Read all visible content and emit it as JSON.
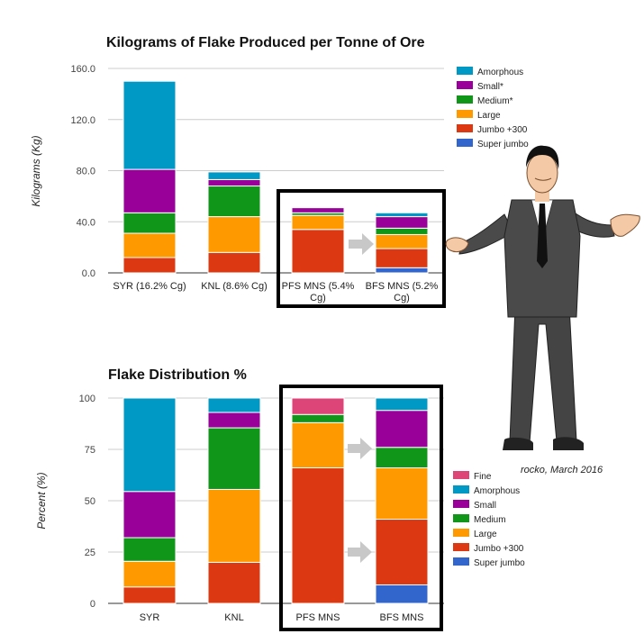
{
  "chart_data": [
    {
      "type": "bar",
      "stacked": true,
      "title": "Kilograms of Flake Produced per Tonne of Ore",
      "ylabel": "Kilograms (Kg)",
      "xlabel": "",
      "ylim": [
        0,
        160
      ],
      "yticks": [
        "0.0",
        "40.0",
        "80.0",
        "120.0",
        "160.0"
      ],
      "grid": true,
      "legend_position": "right",
      "categories": [
        "SYR (16.2% Cg)",
        "KNL (8.6% Cg)",
        "PFS MNS (5.4% Cg)",
        "BFS MNS (5.2% Cg)"
      ],
      "series": [
        {
          "name": "Super jumbo",
          "color": "#3366cc",
          "values": [
            0,
            0,
            0,
            4
          ]
        },
        {
          "name": "Jumbo +300",
          "color": "#dc3912",
          "values": [
            12,
            16,
            34,
            15
          ]
        },
        {
          "name": "Large",
          "color": "#ff9900",
          "values": [
            19,
            28,
            11,
            11
          ]
        },
        {
          "name": "Medium*",
          "color": "#109618",
          "values": [
            16,
            24,
            2,
            5
          ]
        },
        {
          "name": "Small*",
          "color": "#990099",
          "values": [
            34,
            5,
            4,
            9
          ]
        },
        {
          "name": "Amorphous",
          "color": "#0099c6",
          "values": [
            69,
            6,
            0,
            3
          ]
        }
      ]
    },
    {
      "type": "bar",
      "stacked": true,
      "title": "Flake Distribution %",
      "ylabel": "Percent (%)",
      "xlabel": "",
      "ylim": [
        0,
        100
      ],
      "yticks": [
        "0",
        "25",
        "50",
        "75",
        "100"
      ],
      "grid": true,
      "legend_position": "right",
      "categories": [
        "SYR",
        "KNL",
        "PFS MNS",
        "BFS MNS"
      ],
      "series": [
        {
          "name": "Super jumbo",
          "color": "#3366cc",
          "values": [
            0,
            0,
            0,
            9
          ]
        },
        {
          "name": "Jumbo +300",
          "color": "#dc3912",
          "values": [
            8,
            20,
            66,
            32
          ]
        },
        {
          "name": "Large",
          "color": "#ff9900",
          "values": [
            12.5,
            35.5,
            22,
            25
          ]
        },
        {
          "name": "Medium",
          "color": "#109618",
          "values": [
            11.5,
            30,
            4,
            10
          ]
        },
        {
          "name": "Small",
          "color": "#990099",
          "values": [
            22.5,
            7.5,
            0,
            18
          ]
        },
        {
          "name": "Amorphous",
          "color": "#0099c6",
          "values": [
            45.5,
            7,
            0,
            6
          ]
        },
        {
          "name": "Fine",
          "color": "#dd4477",
          "values": [
            0,
            0,
            8,
            0
          ]
        }
      ]
    }
  ],
  "annotations": {
    "credit": "rocko, March 2016"
  },
  "colors": {
    "highlight_box": "#000000",
    "arrow": "#c8c8c8",
    "grid": "#cccccc",
    "suit": "#4a4a4a",
    "skin": "#f3c9a6"
  },
  "icons": {
    "figure": "man-in-suit-shrugging",
    "arrow": "right-arrow-icon"
  }
}
